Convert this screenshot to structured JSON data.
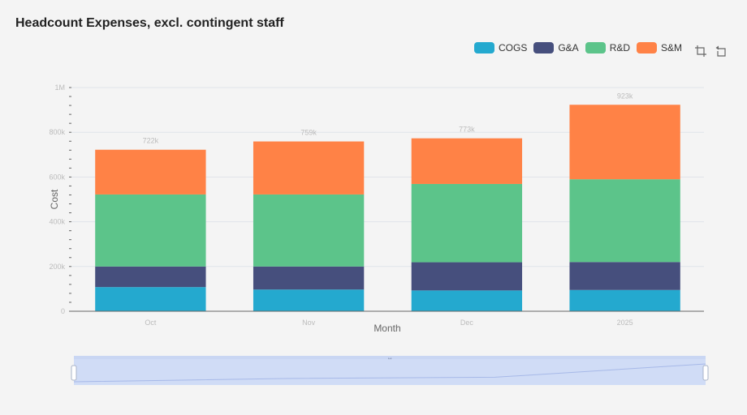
{
  "title": "Headcount Expenses, excl. contingent staff",
  "legend": [
    {
      "label": "COGS",
      "color": "#24a9cf"
    },
    {
      "label": "G&A",
      "color": "#464f7d"
    },
    {
      "label": "R&D",
      "color": "#5cc48a"
    },
    {
      "label": "S&M",
      "color": "#ff8246"
    }
  ],
  "toolbox": {
    "icons": [
      "zoom-icon",
      "zoom-reset-icon"
    ]
  },
  "chart_data": {
    "type": "bar",
    "stacked": true,
    "title": "Headcount Expenses, excl. contingent staff",
    "xlabel": "Month",
    "ylabel": "Cost",
    "categories": [
      "Oct",
      "Nov",
      "Dec",
      "2025"
    ],
    "series": [
      {
        "name": "COGS",
        "color": "#24a9cf",
        "values": [
          108000,
          97000,
          93000,
          95000
        ]
      },
      {
        "name": "G&A",
        "color": "#464f7d",
        "values": [
          92000,
          103000,
          126000,
          125000
        ]
      },
      {
        "name": "R&D",
        "color": "#5cc48a",
        "values": [
          322000,
          322000,
          350000,
          370000
        ]
      },
      {
        "name": "S&M",
        "color": "#ff8246",
        "values": [
          200000,
          237000,
          204000,
          333000
        ]
      }
    ],
    "totals": [
      "722k",
      "759k",
      "773k",
      "923k"
    ],
    "yticks": [
      {
        "value": 0,
        "label": "0"
      },
      {
        "value": 200000,
        "label": "200k"
      },
      {
        "value": 400000,
        "label": "400k"
      },
      {
        "value": 600000,
        "label": "600k"
      },
      {
        "value": 800000,
        "label": "800k"
      },
      {
        "value": 1000000,
        "label": "1M"
      }
    ],
    "ylim": [
      0,
      1000000
    ],
    "grid": true,
    "legend_position": "top-right",
    "data_zoom": {
      "start_percent": 0,
      "end_percent": 100,
      "handle_label": "↔"
    }
  }
}
